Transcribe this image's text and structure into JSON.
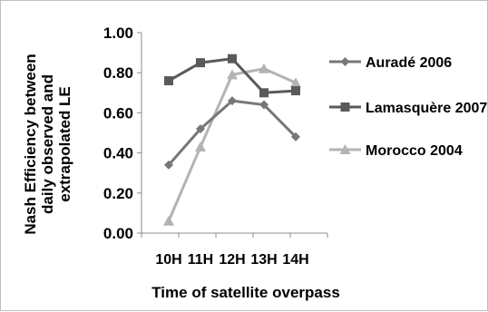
{
  "chart_data": {
    "type": "line",
    "title": "",
    "xlabel": "Time of satellite overpass",
    "ylabel": [
      "Nash Efficiency between",
      "daily observed and",
      "extrapolated LE"
    ],
    "categories": [
      "10H",
      "11H",
      "12H",
      "13H",
      "14H"
    ],
    "ylim": [
      0,
      1
    ],
    "yticks": [
      "0.00",
      "0.20",
      "0.40",
      "0.60",
      "0.80",
      "1.00"
    ],
    "grid": false,
    "legend": "right",
    "series": [
      {
        "name": "Auradé 2006",
        "values": [
          0.34,
          0.52,
          0.66,
          0.64,
          0.48
        ],
        "color": "#777777",
        "marker": "diamond"
      },
      {
        "name": "Lamasquère 2007",
        "values": [
          0.76,
          0.85,
          0.87,
          0.7,
          0.71
        ],
        "color": "#5a5a5a",
        "marker": "square"
      },
      {
        "name": "Morocco 2004",
        "values": [
          0.06,
          0.43,
          0.79,
          0.82,
          0.75
        ],
        "color": "#b3b3b3",
        "marker": "triangle"
      }
    ]
  }
}
